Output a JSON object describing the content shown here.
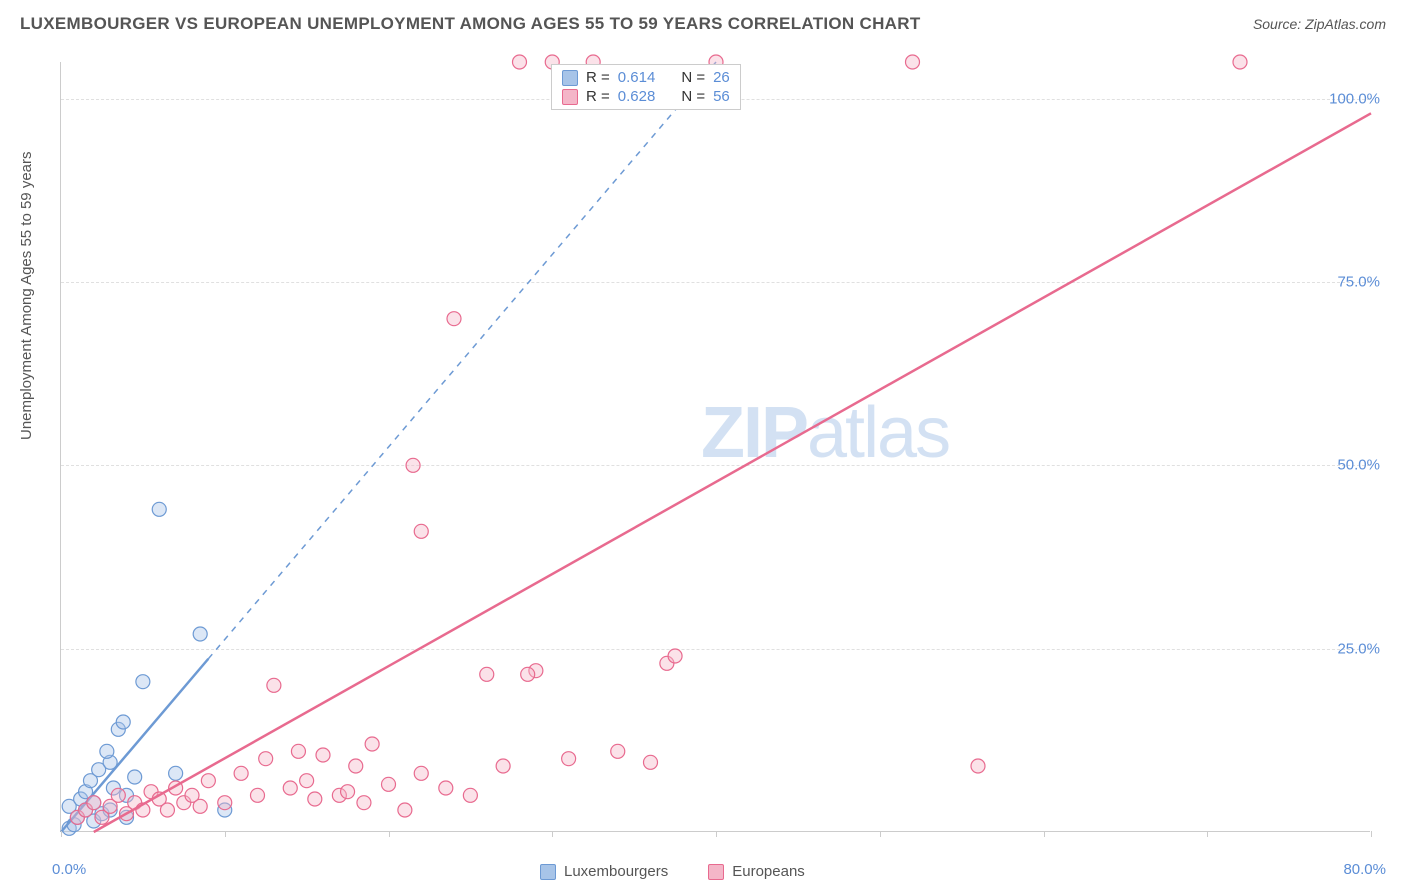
{
  "chart": {
    "type": "scatter",
    "title": "LUXEMBOURGER VS EUROPEAN UNEMPLOYMENT AMONG AGES 55 TO 59 YEARS CORRELATION CHART",
    "source": "Source: ZipAtlas.com",
    "ylabel": "Unemployment Among Ages 55 to 59 years",
    "xlim": [
      0,
      80
    ],
    "ylim": [
      0,
      105
    ],
    "ytick_values": [
      25,
      50,
      75,
      100
    ],
    "ytick_labels": [
      "25.0%",
      "50.0%",
      "75.0%",
      "100.0%"
    ],
    "xtick_values": [
      0,
      10,
      20,
      30,
      40,
      50,
      60,
      70,
      80
    ],
    "xtick_major_labels": {
      "0": "0.0%",
      "80": "80.0%"
    },
    "background_color": "#ffffff",
    "grid_color": "#e0e0e0",
    "marker_radius": 7,
    "watermark_text_bold": "ZIP",
    "watermark_text_light": "atlas",
    "series": [
      {
        "name": "Luxembourgers",
        "fill": "#a7c4e8",
        "stroke": "#6d9ad4",
        "r_value": "0.614",
        "n_value": "26",
        "trendline": {
          "x1": 0,
          "y1": 0,
          "x2": 40,
          "y2": 105,
          "solid_until_x": 9
        },
        "points": [
          [
            0.5,
            0.5
          ],
          [
            0.8,
            1.0
          ],
          [
            1.0,
            2.0
          ],
          [
            1.5,
            3.0
          ],
          [
            0.5,
            3.5
          ],
          [
            1.2,
            4.5
          ],
          [
            1.5,
            5.5
          ],
          [
            1.8,
            7.0
          ],
          [
            2.0,
            1.5
          ],
          [
            2.0,
            4.0
          ],
          [
            2.3,
            8.5
          ],
          [
            2.5,
            2.5
          ],
          [
            3.0,
            3.0
          ],
          [
            3.0,
            9.5
          ],
          [
            3.2,
            6.0
          ],
          [
            3.5,
            14.0
          ],
          [
            3.8,
            15.0
          ],
          [
            4.0,
            5.0
          ],
          [
            4.5,
            7.5
          ],
          [
            5.0,
            20.5
          ],
          [
            6.0,
            44.0
          ],
          [
            7.0,
            8.0
          ],
          [
            8.5,
            27.0
          ],
          [
            10.0,
            3.0
          ],
          [
            4.0,
            2.0
          ],
          [
            2.8,
            11.0
          ]
        ]
      },
      {
        "name": "Europeans",
        "fill": "#f4b6c8",
        "stroke": "#e86a8f",
        "r_value": "0.628",
        "n_value": "56",
        "trendline": {
          "x1": 2,
          "y1": 0,
          "x2": 80,
          "y2": 98,
          "solid_until_x": 80
        },
        "points": [
          [
            1.0,
            2.0
          ],
          [
            1.5,
            3.0
          ],
          [
            2.0,
            4.0
          ],
          [
            2.5,
            2.0
          ],
          [
            3.0,
            3.5
          ],
          [
            3.5,
            5.0
          ],
          [
            4.0,
            2.5
          ],
          [
            4.5,
            4.0
          ],
          [
            5.0,
            3.0
          ],
          [
            5.5,
            5.5
          ],
          [
            6.0,
            4.5
          ],
          [
            6.5,
            3.0
          ],
          [
            7.0,
            6.0
          ],
          [
            7.5,
            4.0
          ],
          [
            8.0,
            5.0
          ],
          [
            8.5,
            3.5
          ],
          [
            9.0,
            7.0
          ],
          [
            10.0,
            4.0
          ],
          [
            11.0,
            8.0
          ],
          [
            12.0,
            5.0
          ],
          [
            12.5,
            10.0
          ],
          [
            13.0,
            20.0
          ],
          [
            14.0,
            6.0
          ],
          [
            14.5,
            11.0
          ],
          [
            15.0,
            7.0
          ],
          [
            16.0,
            10.5
          ],
          [
            17.0,
            5.0
          ],
          [
            18.0,
            9.0
          ],
          [
            18.5,
            4.0
          ],
          [
            19.0,
            12.0
          ],
          [
            20.0,
            6.5
          ],
          [
            21.0,
            3.0
          ],
          [
            21.5,
            50.0
          ],
          [
            22.0,
            8.0
          ],
          [
            22.0,
            41.0
          ],
          [
            24.0,
            70.0
          ],
          [
            25.0,
            5.0
          ],
          [
            26.0,
            21.5
          ],
          [
            27.0,
            9.0
          ],
          [
            28.0,
            105.0
          ],
          [
            29.0,
            22.0
          ],
          [
            30.0,
            105.0
          ],
          [
            31.0,
            10.0
          ],
          [
            32.5,
            105.0
          ],
          [
            34.0,
            11.0
          ],
          [
            37.0,
            23.0
          ],
          [
            37.5,
            24.0
          ],
          [
            40.0,
            105.0
          ],
          [
            52.0,
            105.0
          ],
          [
            56.0,
            9.0
          ],
          [
            72.0,
            105.0
          ],
          [
            17.5,
            5.5
          ],
          [
            28.5,
            21.5
          ],
          [
            36.0,
            9.5
          ],
          [
            15.5,
            4.5
          ],
          [
            23.5,
            6.0
          ]
        ]
      }
    ],
    "stats_box": {
      "r_label": "R =",
      "n_label": "N ="
    },
    "bottom_legend": [
      "Luxembourgers",
      "Europeans"
    ]
  }
}
